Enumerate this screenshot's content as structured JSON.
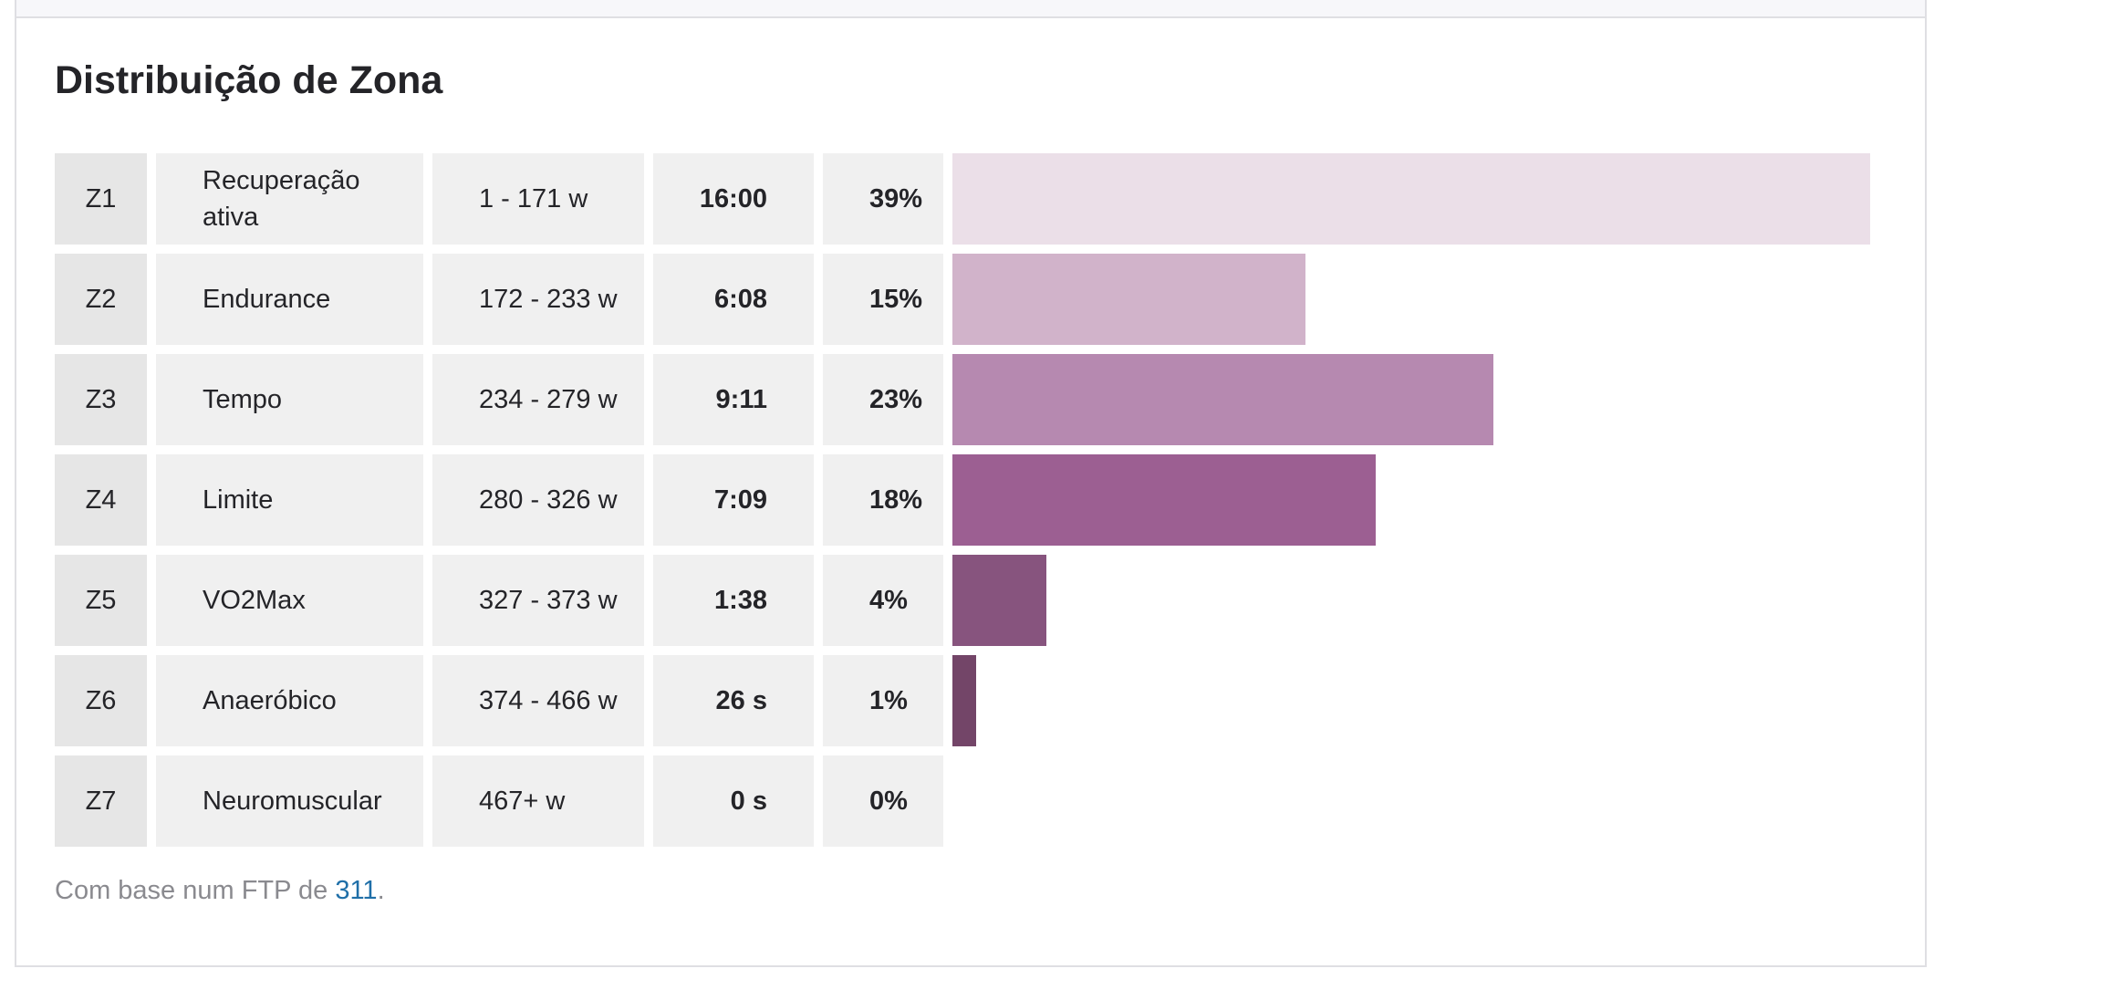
{
  "section": {
    "title": "Distribuição de Zona"
  },
  "footnote": {
    "prefix": "Com base num FTP de ",
    "ftp_value": "311",
    "suffix": "."
  },
  "chart_data": {
    "type": "bar",
    "title": "Distribuição de Zona",
    "orientation": "horizontal",
    "xlim": [
      0,
      39
    ],
    "grid": false,
    "legend": "none",
    "categories": [
      "Z1",
      "Z2",
      "Z3",
      "Z4",
      "Z5",
      "Z6",
      "Z7"
    ],
    "values": [
      39,
      15,
      23,
      18,
      4,
      1,
      0
    ],
    "rows": [
      {
        "zone": "Z1",
        "name": "Recuperação ativa",
        "range": "1 - 171 w",
        "time": "16:00",
        "pct_label": "39%",
        "pct": 39.0,
        "color": "#ebdfe8"
      },
      {
        "zone": "Z2",
        "name": "Endurance",
        "range": "172 - 233 w",
        "time": "6:08",
        "pct_label": "15%",
        "pct": 15.0,
        "color": "#d1b3ca"
      },
      {
        "zone": "Z3",
        "name": "Tempo",
        "range": "234 - 279 w",
        "time": "9:11",
        "pct_label": "23%",
        "pct": 23.0,
        "color": "#b689b0"
      },
      {
        "zone": "Z4",
        "name": "Limite",
        "range": "280 - 326 w",
        "time": "7:09",
        "pct_label": "18%",
        "pct": 18.0,
        "color": "#9c5f92"
      },
      {
        "zone": "Z5",
        "name": "VO2Max",
        "range": "327 - 373 w",
        "time": "1:38",
        "pct_label": "4%",
        "pct": 4.0,
        "color": "#87547e"
      },
      {
        "zone": "Z6",
        "name": "Anaeróbico",
        "range": "374 - 466 w",
        "time": "26 s",
        "pct_label": "1%",
        "pct": 1.0,
        "color": "#734568"
      },
      {
        "zone": "Z7",
        "name": "Neuromuscular",
        "range": "467+ w",
        "time": "0 s",
        "pct_label": "0%",
        "pct": 0.0,
        "color": "#5e3656"
      }
    ]
  }
}
